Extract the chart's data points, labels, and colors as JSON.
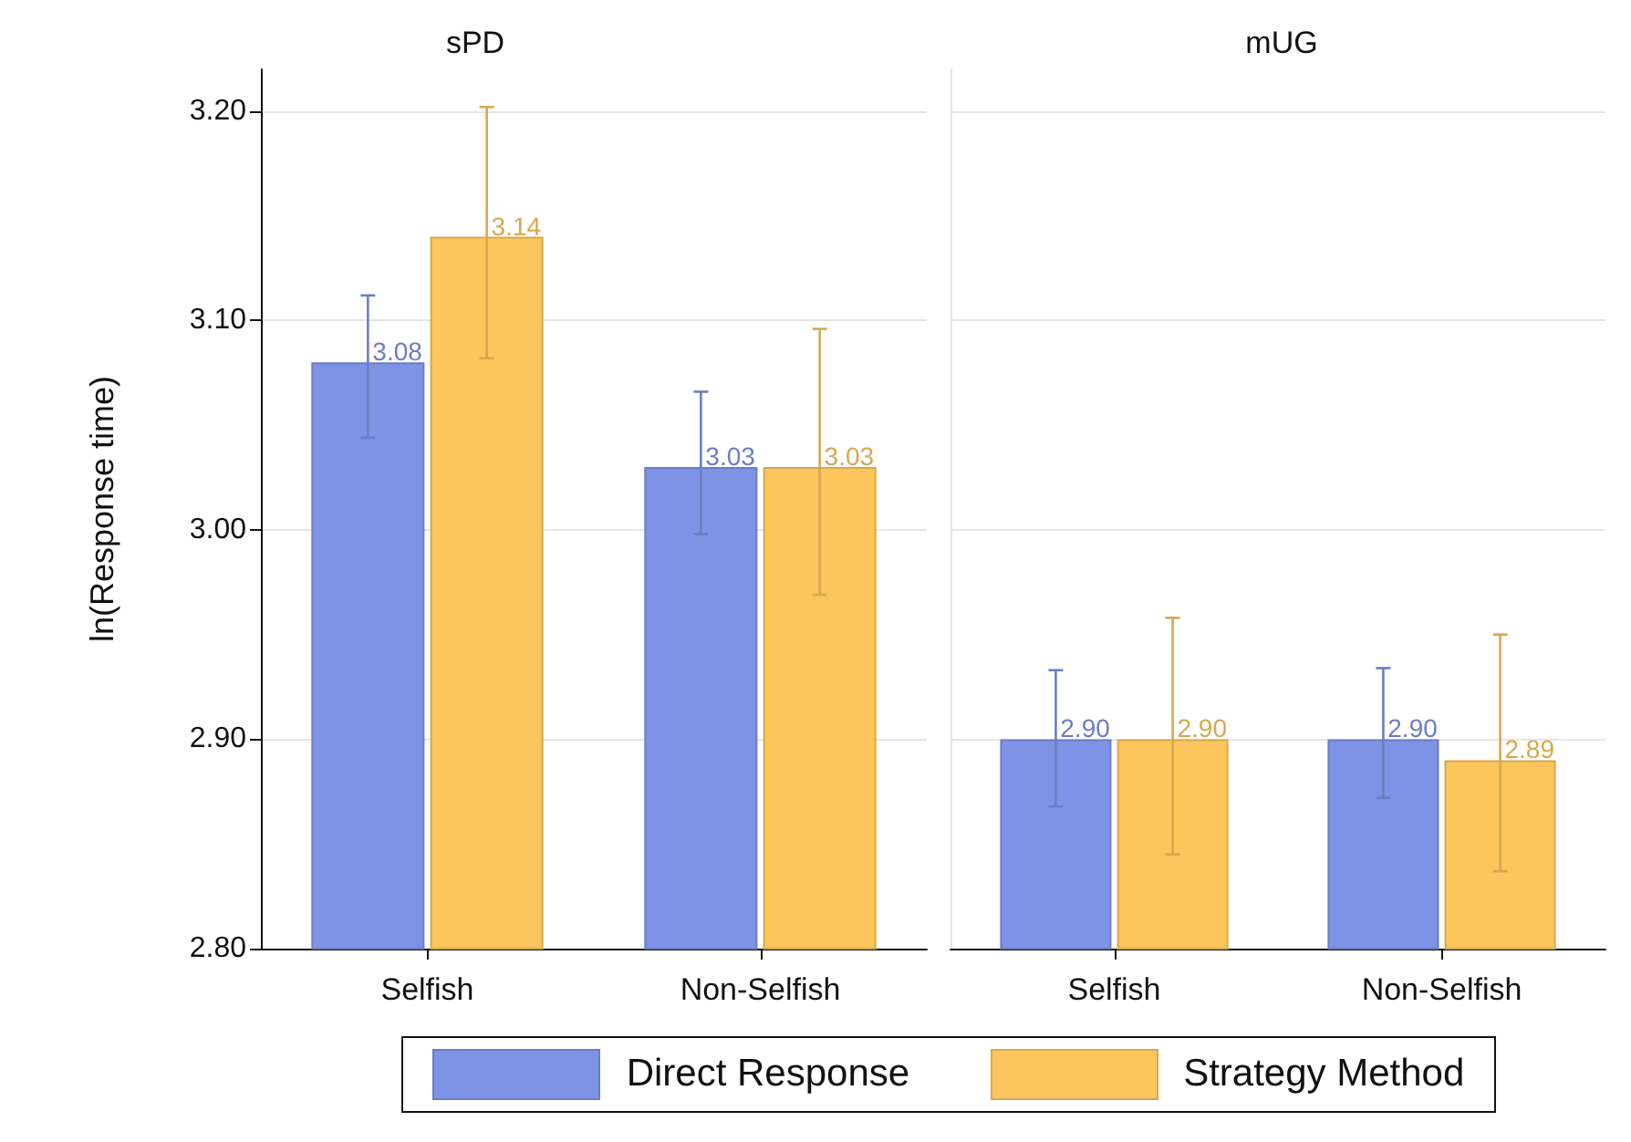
{
  "chart_data": [
    {
      "type": "bar",
      "title": "sPD",
      "ylabel": "ln(Response time)",
      "categories": [
        "Selfish",
        "Non-Selfish"
      ],
      "ylim": [
        2.8,
        3.22
      ],
      "yticks": [
        {
          "value": 2.8,
          "label": "2.80"
        },
        {
          "value": 2.9,
          "label": "2.90"
        },
        {
          "value": 3.0,
          "label": "3.00"
        },
        {
          "value": 3.1,
          "label": "3.10"
        },
        {
          "value": 3.2,
          "label": "3.20"
        }
      ],
      "grid": "y",
      "legend": "bottom",
      "series": [
        {
          "name": "Direct Response",
          "color": "#7f93e6",
          "values": [
            3.08,
            3.03
          ],
          "value_labels": [
            "3.08",
            "3.03"
          ],
          "errors": [
            [
              3.044,
              3.112
            ],
            [
              2.998,
              3.066
            ]
          ]
        },
        {
          "name": "Strategy Method",
          "color": "#fdc65c",
          "values": [
            3.14,
            3.03
          ],
          "value_labels": [
            "3.14",
            "3.03"
          ],
          "errors": [
            [
              3.082,
              3.202
            ],
            [
              2.969,
              3.096
            ]
          ]
        }
      ]
    },
    {
      "type": "bar",
      "title": "mUG",
      "categories": [
        "Selfish",
        "Non-Selfish"
      ],
      "ylim": [
        2.8,
        3.22
      ],
      "yticks": [
        2.8,
        2.9,
        3.0,
        3.1,
        3.2
      ],
      "grid": "y",
      "legend": "bottom",
      "tick_labels": "x",
      "series": [
        {
          "name": "Direct Response",
          "color": "#7f93e6",
          "values": [
            2.9,
            2.9
          ],
          "value_labels": [
            "2.90",
            "2.90"
          ],
          "errors": [
            [
              2.868,
              2.933
            ],
            [
              2.872,
              2.934
            ]
          ]
        },
        {
          "name": "Strategy Method",
          "color": "#fdc65c",
          "values": [
            2.9,
            2.89
          ],
          "value_labels": [
            "2.90",
            "2.89"
          ],
          "errors": [
            [
              2.845,
              2.958
            ],
            [
              2.837,
              2.95
            ]
          ]
        }
      ]
    }
  ]
}
